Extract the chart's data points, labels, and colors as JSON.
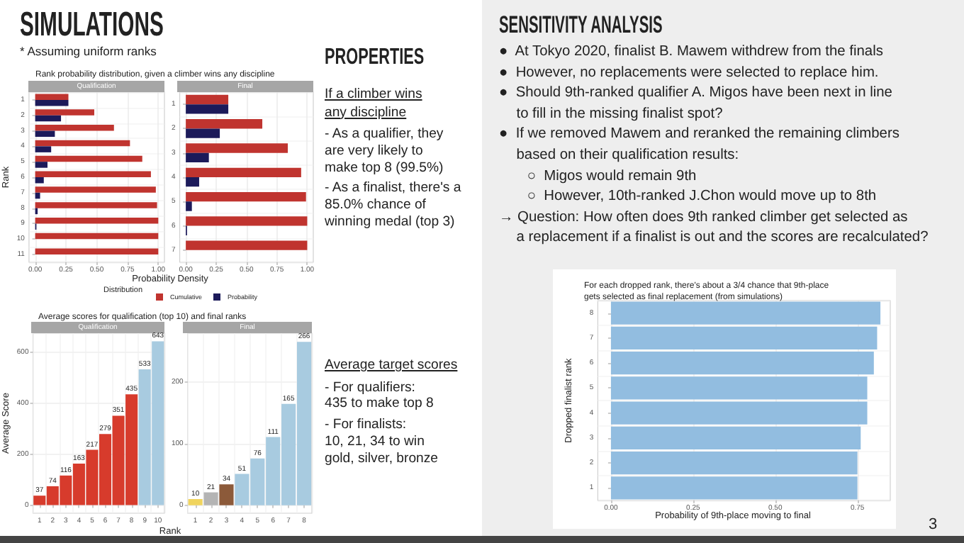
{
  "chart_data": [
    {
      "type": "bar",
      "orientation": "horizontal",
      "title": "Rank probability distribution, given a climber wins any discipline",
      "subtitle": "Qualification",
      "xlabel": "Probability Density",
      "ylabel": "Rank",
      "legend_title": "Distribution",
      "legend": "bottom",
      "grid": true,
      "categories": [
        "1",
        "2",
        "3",
        "4",
        "5",
        "6",
        "7",
        "8",
        "9",
        "10",
        "11"
      ],
      "xlim": [
        -0.05,
        1.05
      ],
      "xticks": [
        {
          "value": 0,
          "label": "0.00"
        },
        {
          "value": 0.25,
          "label": "0.25"
        },
        {
          "value": 0.5,
          "label": "0.50"
        },
        {
          "value": 0.75,
          "label": "0.75"
        },
        {
          "value": 1,
          "label": "1.00"
        }
      ],
      "series": [
        {
          "name": "Cumulative",
          "color": "#c0342f",
          "values": [
            0.27,
            0.48,
            0.64,
            0.77,
            0.87,
            0.94,
            0.98,
            0.99,
            1.0,
            1.0,
            1.0
          ]
        },
        {
          "name": "Probability",
          "color": "#1c1a5a",
          "values": [
            0.27,
            0.21,
            0.16,
            0.13,
            0.1,
            0.07,
            0.04,
            0.02,
            0.01,
            0,
            0
          ]
        }
      ]
    },
    {
      "type": "bar",
      "orientation": "horizontal",
      "subtitle": "Final",
      "grid": true,
      "categories": [
        "1",
        "2",
        "3",
        "4",
        "5",
        "6",
        "7"
      ],
      "xlim": [
        -0.05,
        1.05
      ],
      "xticks": [
        {
          "value": 0,
          "label": "0.00"
        },
        {
          "value": 0.25,
          "label": "0.25"
        },
        {
          "value": 0.5,
          "label": "0.50"
        },
        {
          "value": 0.75,
          "label": "0.75"
        },
        {
          "value": 1,
          "label": "1.00"
        }
      ],
      "series": [
        {
          "color": "#c0342f",
          "values": [
            0.35,
            0.63,
            0.84,
            0.95,
            0.99,
            1.0,
            1.0
          ]
        },
        {
          "color": "#1c1a5a",
          "values": [
            0.35,
            0.28,
            0.19,
            0.11,
            0.05,
            0.01,
            0
          ]
        }
      ]
    },
    {
      "type": "bar",
      "title": "Average scores for qualification (top 10) and final ranks",
      "subtitle": "Qualification",
      "xlabel": "Rank",
      "ylabel": "Average Score",
      "grid": true,
      "data_labels": true,
      "categories": [
        "1",
        "2",
        "3",
        "4",
        "5",
        "6",
        "7",
        "8",
        "9",
        "10"
      ],
      "values": [
        37,
        74,
        116,
        163,
        217,
        279,
        351,
        435,
        533,
        643
      ],
      "colors": [
        "#d73b2c",
        "#d73b2c",
        "#d73b2c",
        "#d73b2c",
        "#d73b2c",
        "#d73b2c",
        "#d73b2c",
        "#d73b2c",
        "#a8cbe0",
        "#a8cbe0"
      ],
      "ylim": [
        -32,
        675
      ],
      "yticks": [
        0,
        200,
        400,
        600
      ]
    },
    {
      "type": "bar",
      "subtitle": "Final",
      "grid": true,
      "data_labels": true,
      "categories": [
        "1",
        "2",
        "3",
        "4",
        "5",
        "6",
        "7",
        "8"
      ],
      "values": [
        10,
        21,
        34,
        51,
        76,
        111,
        165,
        266
      ],
      "colors": [
        "#f0d45e",
        "#b4b4b4",
        "#8c5a3a",
        "#a8cbe0",
        "#a8cbe0",
        "#a8cbe0",
        "#a8cbe0",
        "#a8cbe0"
      ],
      "ylim": [
        -13,
        280
      ],
      "yticks": [
        0,
        100,
        200
      ]
    },
    {
      "type": "other",
      "title": "SIMULATIONS",
      "subtitle": "* Assuming uniform ranks"
    },
    {
      "type": "other",
      "title": "PROPERTIES",
      "subtitle": "If a climber wins\nany discipline",
      "annotations": [
        "- As a qualifier, they\nare very likely to\nmake top 8 (99.5%)",
        "- As a finalist, there's a\n85.0% chance of\nwinning medal (top 3)"
      ]
    },
    {
      "type": "other",
      "subtitle": "Average target scores",
      "annotations": [
        "- For qualifiers:\n435 to make top 8",
        "- For finalists:\n10, 21, 34 to win\ngold, silver, bronze"
      ]
    },
    {
      "type": "other",
      "title": "SENSITIVITY ANALYSIS",
      "annotations": [
        "●  At Tokyo 2020, finalist B. Mawem withdrew from the finals",
        "●  However, no replacements were selected to replace him.",
        "●  Should 9th-ranked qualifier A. Migos have been next in line\nto fill in the missing finalist spot?",
        "●  If we removed Mawem and reranked the remaining climbers\nbased on their qualification results:",
        "       ○  Migos would remain 9th",
        "       ○  However, 10th-ranked J.Chon would move up to 8th",
        "→ Question: How often does 9th ranked climber get selected as\na replacement if a finalist is out and the scores are recalculated?"
      ]
    },
    {
      "type": "bar",
      "orientation": "horizontal",
      "title": "For each dropped rank, there's about a 3/4 chance that 9th-place\ngets selected as final replacement (from simulations)",
      "xlabel": "Probability of 9th-place moving to final",
      "ylabel": "Dropped finalist rank",
      "grid": true,
      "categories": [
        "8",
        "7",
        "6",
        "5",
        "4",
        "3",
        "2",
        "1"
      ],
      "values": [
        0.82,
        0.81,
        0.8,
        0.78,
        0.78,
        0.76,
        0.75,
        0.75
      ],
      "color": "#92bde0",
      "xlim": [
        -0.04,
        0.85
      ],
      "xticks": [
        {
          "value": 0,
          "label": "0.00"
        },
        {
          "value": 0.25,
          "label": "0.25"
        },
        {
          "value": 0.5,
          "label": "0.50"
        },
        {
          "value": 0.75,
          "label": "0.75"
        }
      ]
    },
    {
      "type": "other",
      "annotations": [
        "3"
      ]
    }
  ]
}
